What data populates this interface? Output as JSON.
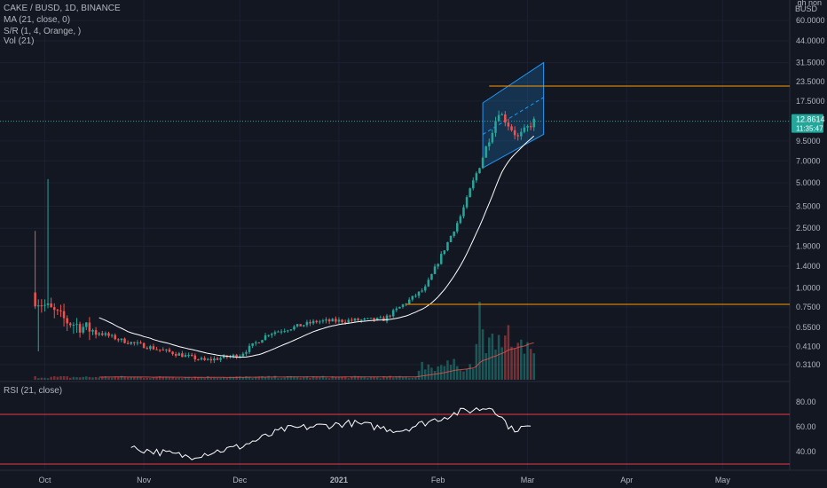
{
  "header": {
    "title_line": "CAKE / BUSD, 1D, BINANCE",
    "ma_line": "MA (21, close, 0)",
    "sr_line": "S/R (1, 4, Orange, )",
    "vol_line": "Vol (21)",
    "rsi_line": "RSI (21, close)"
  },
  "price_axis": {
    "unit_top": "BUSD",
    "unit_top_cut": "gh non",
    "labels": [
      "60.0000",
      "44.0000",
      "31.5000",
      "23.5000",
      "17.5000",
      "9.5000",
      "7.0000",
      "5.0000",
      "3.5000",
      "2.5000",
      "1.9000",
      "1.4000",
      "1.0000",
      "0.7500",
      "0.5500",
      "0.4100",
      "0.3100"
    ],
    "last_price": "12.8614",
    "countdown": "11:35:47"
  },
  "rsi_axis": {
    "labels": [
      "80.00",
      "60.00",
      "40.00"
    ]
  },
  "time_axis": {
    "labels": [
      "Oct",
      "Nov",
      "Dec",
      "2021",
      "Feb",
      "Mar",
      "Apr",
      "May"
    ],
    "bold": "2021"
  },
  "colors": {
    "background": "#131722",
    "up": "#26a69a",
    "down": "#ef5350",
    "ma": "#ffffff",
    "sr": "#ff9800",
    "rsi_band": "#f23645",
    "channel": "#2196f3",
    "last_price_line": "#26a69a"
  },
  "chart_data": {
    "type": "candlestick",
    "scale": "log",
    "price_ticks": [
      0.31,
      0.41,
      0.55,
      0.75,
      1.0,
      1.4,
      1.9,
      2.5,
      3.5,
      5.0,
      7.0,
      9.5,
      17.5,
      23.5,
      31.5,
      44.0,
      60.0
    ],
    "key_points": [
      {
        "date": "2020-09-28",
        "price": 0.85
      },
      {
        "date": "2020-10-08",
        "price": 0.6
      },
      {
        "date": "2020-10-25",
        "price": 0.45
      },
      {
        "date": "2020-11-20",
        "price": 0.33
      },
      {
        "date": "2020-12-01",
        "price": 0.36
      },
      {
        "date": "2020-12-10",
        "price": 0.5
      },
      {
        "date": "2020-12-25",
        "price": 0.6
      },
      {
        "date": "2021-01-15",
        "price": 0.62
      },
      {
        "date": "2021-01-28",
        "price": 1.0
      },
      {
        "date": "2021-02-08",
        "price": 3.0
      },
      {
        "date": "2021-02-15",
        "price": 7.5
      },
      {
        "date": "2021-02-20",
        "price": 15.0
      },
      {
        "date": "2021-02-26",
        "price": 10.0
      },
      {
        "date": "2021-03-03",
        "price": 12.86
      }
    ],
    "last_price": 12.8614,
    "sr_levels": [
      22.0,
      0.78
    ],
    "ma_period": 21,
    "rsi_period": 21,
    "rsi_bands": [
      70,
      30
    ],
    "rsi_ticks": [
      80,
      60,
      40
    ],
    "rsi_points": [
      {
        "date": "2020-10-28",
        "value": 43
      },
      {
        "date": "2020-11-15",
        "value": 36
      },
      {
        "date": "2020-12-01",
        "value": 44
      },
      {
        "date": "2020-12-15",
        "value": 58
      },
      {
        "date": "2021-01-05",
        "value": 63
      },
      {
        "date": "2021-01-20",
        "value": 57
      },
      {
        "date": "2021-02-08",
        "value": 72
      },
      {
        "date": "2021-02-18",
        "value": 76
      },
      {
        "date": "2021-02-24",
        "value": 58
      },
      {
        "date": "2021-03-02",
        "value": 60
      }
    ],
    "x_range": [
      "2020-09-17",
      "2021-05-22"
    ],
    "legend": "top-left"
  }
}
